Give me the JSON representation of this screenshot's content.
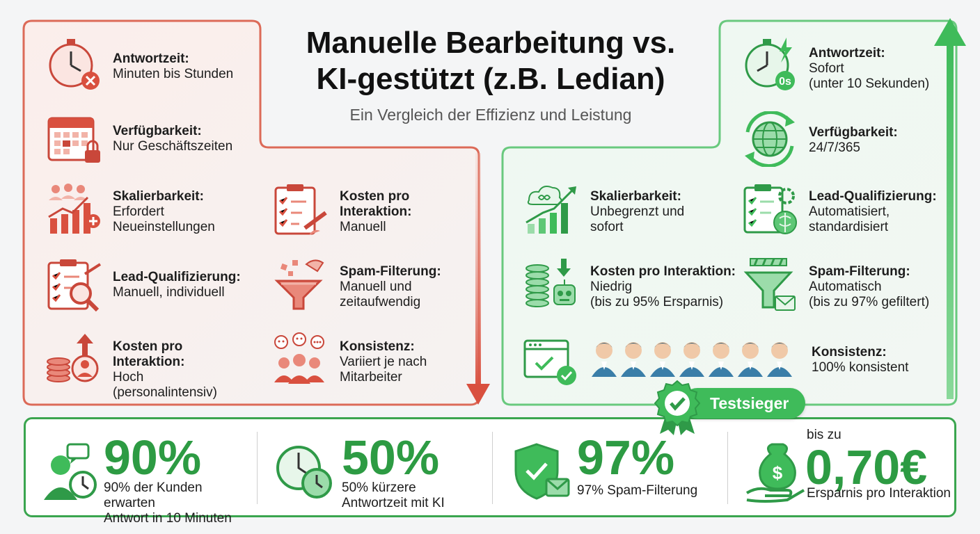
{
  "title": "Manuelle Bearbeitung vs.\nKI-gestützt (z.B. Ledian)",
  "subtitle": "Ein Vergleich der Effizienz und Leistung",
  "colors": {
    "manual": "#d9503f",
    "ai": "#3fbb5a",
    "stat_green": "#2d9b43"
  },
  "manual": {
    "response": {
      "label": "Antwortzeit:",
      "value": "Minuten bis Stunden",
      "icon": "stopwatch-x-icon"
    },
    "availability": {
      "label": "Verfügbarkeit:",
      "value": "Nur Geschäftszeiten",
      "icon": "calendar-lock-icon"
    },
    "scalability": {
      "label": "Skalierbarkeit:",
      "value": "Erfordert\nNeueinstellungen",
      "icon": "team-growth-icon"
    },
    "lead": {
      "label": "Lead-Qualifizierung:",
      "value": "Manuell, individuell",
      "icon": "clipboard-search-icon"
    },
    "cost": {
      "label": "Kosten pro\nInteraktion:",
      "value": "Hoch\n(personalintensiv)",
      "icon": "coins-arrow-up-icon"
    },
    "cost_right": {
      "label": "Kosten pro\nInteraktion:",
      "value": "Manuell",
      "icon": "clipboard-pen-icon"
    },
    "spam": {
      "label": "Spam-Filterung:",
      "value": "Manuell und\nzeitaufwendig",
      "icon": "funnel-hand-icon"
    },
    "consistency": {
      "label": "Konsistenz:",
      "value": "Variiert je nach\nMitarbeiter",
      "icon": "people-chat-icon"
    }
  },
  "ai": {
    "response": {
      "label": "Antwortzeit:",
      "value": "Sofort\n(unter 10 Sekunden)",
      "icon": "stopwatch-bolt-icon",
      "badge": "0s"
    },
    "availability": {
      "label": "Verfügbarkeit:",
      "value": "24/7/365",
      "icon": "globe-cycle-icon"
    },
    "scalability": {
      "label": "Skalierbarkeit:",
      "value": "Unbegrenzt und\nsofort",
      "icon": "cloud-chart-icon"
    },
    "lead": {
      "label": "Lead-Qualifizierung:",
      "value": "Automatisiert,\nstandardisiert",
      "icon": "clipboard-brain-icon"
    },
    "cost": {
      "label": "Kosten pro Interaktion:",
      "value": "Niedrig\n(bis zu 95% Ersparnis)",
      "icon": "coins-robot-icon"
    },
    "spam": {
      "label": "Spam-Filterung:",
      "value": "Automatisch\n(bis zu 97% gefiltert)",
      "icon": "funnel-mail-icon"
    },
    "consistency": {
      "label": "Konsistenz:",
      "value": "100% konsistent",
      "icon": "browser-check-icon"
    }
  },
  "badge_label": "Testsieger",
  "stats": [
    {
      "big": "90%",
      "desc": "90% der Kunden erwarten\nAntwort in 10 Minuten",
      "icon": "person-clock-icon"
    },
    {
      "big": "50%",
      "desc": "50% kürzere\nAntwortzeit mit KI",
      "icon": "double-clock-icon"
    },
    {
      "big": "97%",
      "desc": "97% Spam-Filterung",
      "icon": "shield-mail-icon"
    },
    {
      "pre": "bis zu",
      "big": "0,70€",
      "desc": "Ersparnis pro Interaktion",
      "icon": "money-bag-hand-icon"
    }
  ]
}
